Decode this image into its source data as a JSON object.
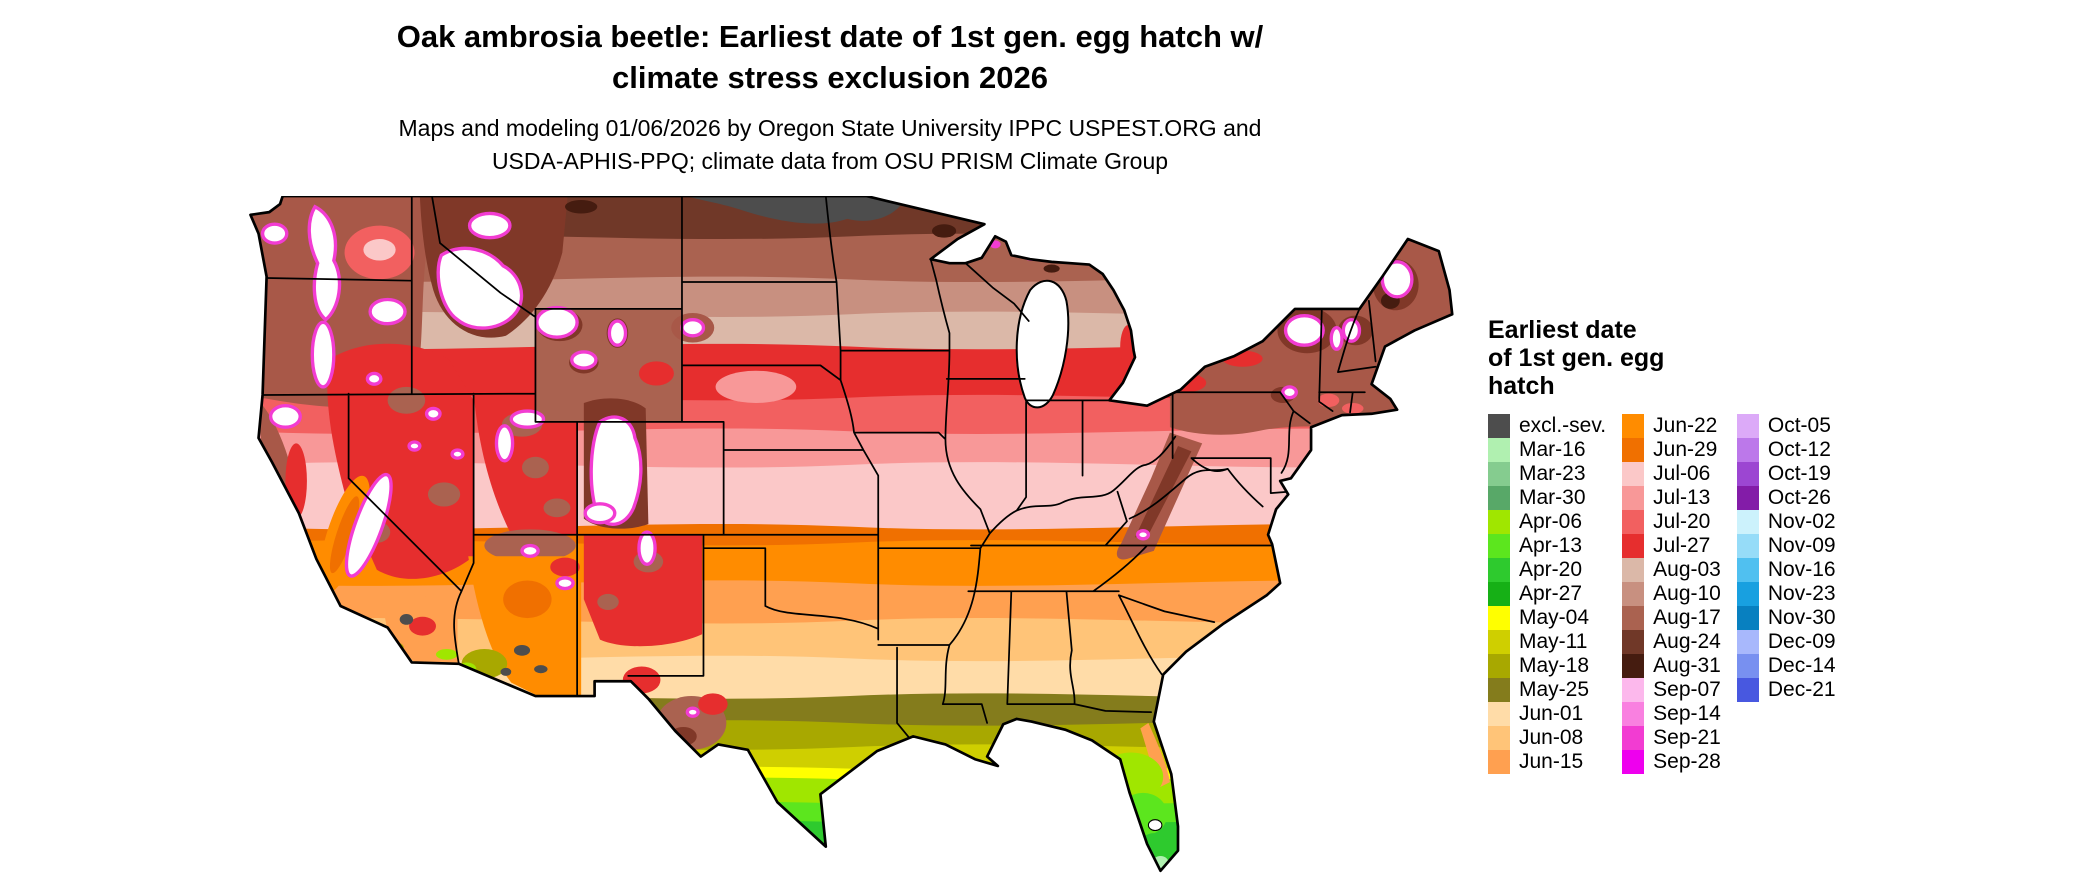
{
  "header": {
    "title_line1": "Oak ambrosia beetle: Earliest date of 1st gen. egg hatch w/",
    "title_line2": "climate stress exclusion 2026",
    "subtitle_line1": "Maps and modeling 01/06/2026 by Oregon State University IPPC USPEST.ORG and",
    "subtitle_line2": "USDA-APHIS-PPQ; climate data from OSU PRISM Climate Group"
  },
  "map": {
    "kind": "Choropleth map of the conterminous United States colored by earliest date of 1st generation egg hatch",
    "excluded_severe_color": "#4d4d4d",
    "no_data_color": "#ffffff"
  },
  "legend": {
    "title_lines": [
      "Earliest date",
      "of 1st gen. egg",
      "hatch"
    ],
    "columns": [
      {
        "entries": [
          {
            "label": "excl.-sev.",
            "color": "#4d4d4d"
          },
          {
            "label": "Mar-16",
            "color": "#b0f0b0"
          },
          {
            "label": "Mar-23",
            "color": "#85cc8f"
          },
          {
            "label": "Mar-30",
            "color": "#58a868"
          },
          {
            "label": "Apr-06",
            "color": "#a0e600"
          },
          {
            "label": "Apr-13",
            "color": "#5ce61e"
          },
          {
            "label": "Apr-20",
            "color": "#2eca2e"
          },
          {
            "label": "Apr-27",
            "color": "#16b016"
          },
          {
            "label": "May-04",
            "color": "#ffff00"
          },
          {
            "label": "May-11",
            "color": "#cfcf00"
          },
          {
            "label": "May-18",
            "color": "#a8a800"
          },
          {
            "label": "May-25",
            "color": "#847c1c"
          },
          {
            "label": "Jun-01",
            "color": "#ffdca8"
          },
          {
            "label": "Jun-08",
            "color": "#ffc478"
          },
          {
            "label": "Jun-15",
            "color": "#ffa050"
          }
        ]
      },
      {
        "entries": [
          {
            "label": "Jun-22",
            "color": "#ff8c00"
          },
          {
            "label": "Jun-29",
            "color": "#f07000"
          },
          {
            "label": "Jul-06",
            "color": "#fbc8c8"
          },
          {
            "label": "Jul-13",
            "color": "#f89898"
          },
          {
            "label": "Jul-20",
            "color": "#f26060"
          },
          {
            "label": "Jul-27",
            "color": "#e62e2e"
          },
          {
            "label": "Aug-03",
            "color": "#dbb8a8"
          },
          {
            "label": "Aug-10",
            "color": "#c89080"
          },
          {
            "label": "Aug-17",
            "color": "#aa6250"
          },
          {
            "label": "Aug-24",
            "color": "#703828"
          },
          {
            "label": "Aug-31",
            "color": "#451c10"
          },
          {
            "label": "Sep-07",
            "color": "#fcb8ec"
          },
          {
            "label": "Sep-14",
            "color": "#f980e0"
          },
          {
            "label": "Sep-21",
            "color": "#f23cd2"
          },
          {
            "label": "Sep-28",
            "color": "#ee00ee"
          }
        ]
      },
      {
        "entries": [
          {
            "label": "Oct-05",
            "color": "#dcaaf8"
          },
          {
            "label": "Oct-12",
            "color": "#bc78ea"
          },
          {
            "label": "Oct-19",
            "color": "#9c46d2"
          },
          {
            "label": "Oct-26",
            "color": "#831ca8"
          },
          {
            "label": "Nov-02",
            "color": "#ccf2fc"
          },
          {
            "label": "Nov-09",
            "color": "#96dcf8"
          },
          {
            "label": "Nov-16",
            "color": "#50c0f0"
          },
          {
            "label": "Nov-23",
            "color": "#18a0e0"
          },
          {
            "label": "Nov-30",
            "color": "#0880c0"
          },
          {
            "label": "Dec-09",
            "color": "#a8b8fc"
          },
          {
            "label": "Dec-14",
            "color": "#7890f0"
          },
          {
            "label": "Dec-21",
            "color": "#4858e0"
          }
        ]
      }
    ]
  }
}
